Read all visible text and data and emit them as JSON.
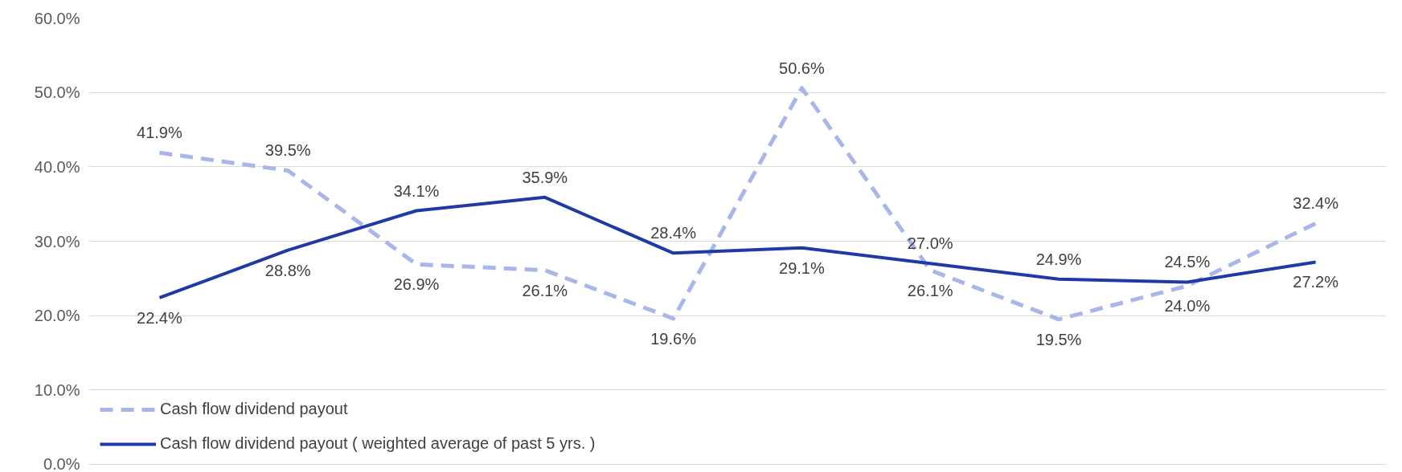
{
  "chart_data": {
    "type": "line",
    "categories": [
      null,
      null,
      null,
      null,
      null,
      null,
      null,
      null,
      null,
      null
    ],
    "series": [
      {
        "name": "Cash flow dividend payout",
        "color": "#a9b6ea",
        "line_style": "dashed",
        "values": [
          41.9,
          39.5,
          26.9,
          26.1,
          19.6,
          50.6,
          26.1,
          19.5,
          24.0,
          32.4
        ],
        "value_labels": [
          "41.9%",
          "39.5%",
          "26.9%",
          "26.1%",
          "19.6%",
          "50.6%",
          "26.1%",
          "19.5%",
          "24.0%",
          "32.4%"
        ]
      },
      {
        "name": "Cash flow dividend payout ( weighted average of past 5 yrs. )",
        "color": "#1f3aa6",
        "line_style": "solid",
        "values": [
          22.4,
          28.8,
          34.1,
          35.9,
          28.4,
          29.1,
          27.0,
          24.9,
          24.5,
          27.2
        ],
        "value_labels": [
          "22.4%",
          "28.8%",
          "34.1%",
          "35.9%",
          "28.4%",
          "29.1%",
          "27.0%",
          "24.9%",
          "24.5%",
          "27.2%"
        ]
      }
    ],
    "ylim": [
      0,
      60
    ],
    "yticks": [
      {
        "value": 0,
        "label": "0.0%"
      },
      {
        "value": 10,
        "label": "10.0%"
      },
      {
        "value": 20,
        "label": "20.0%"
      },
      {
        "value": 30,
        "label": "30.0%"
      },
      {
        "value": 40,
        "label": "40.0%"
      },
      {
        "value": 50,
        "label": "50.0%"
      },
      {
        "value": 60,
        "label": "60.0%"
      }
    ],
    "grid": "y",
    "legend": "bottom left",
    "marker": "none"
  }
}
